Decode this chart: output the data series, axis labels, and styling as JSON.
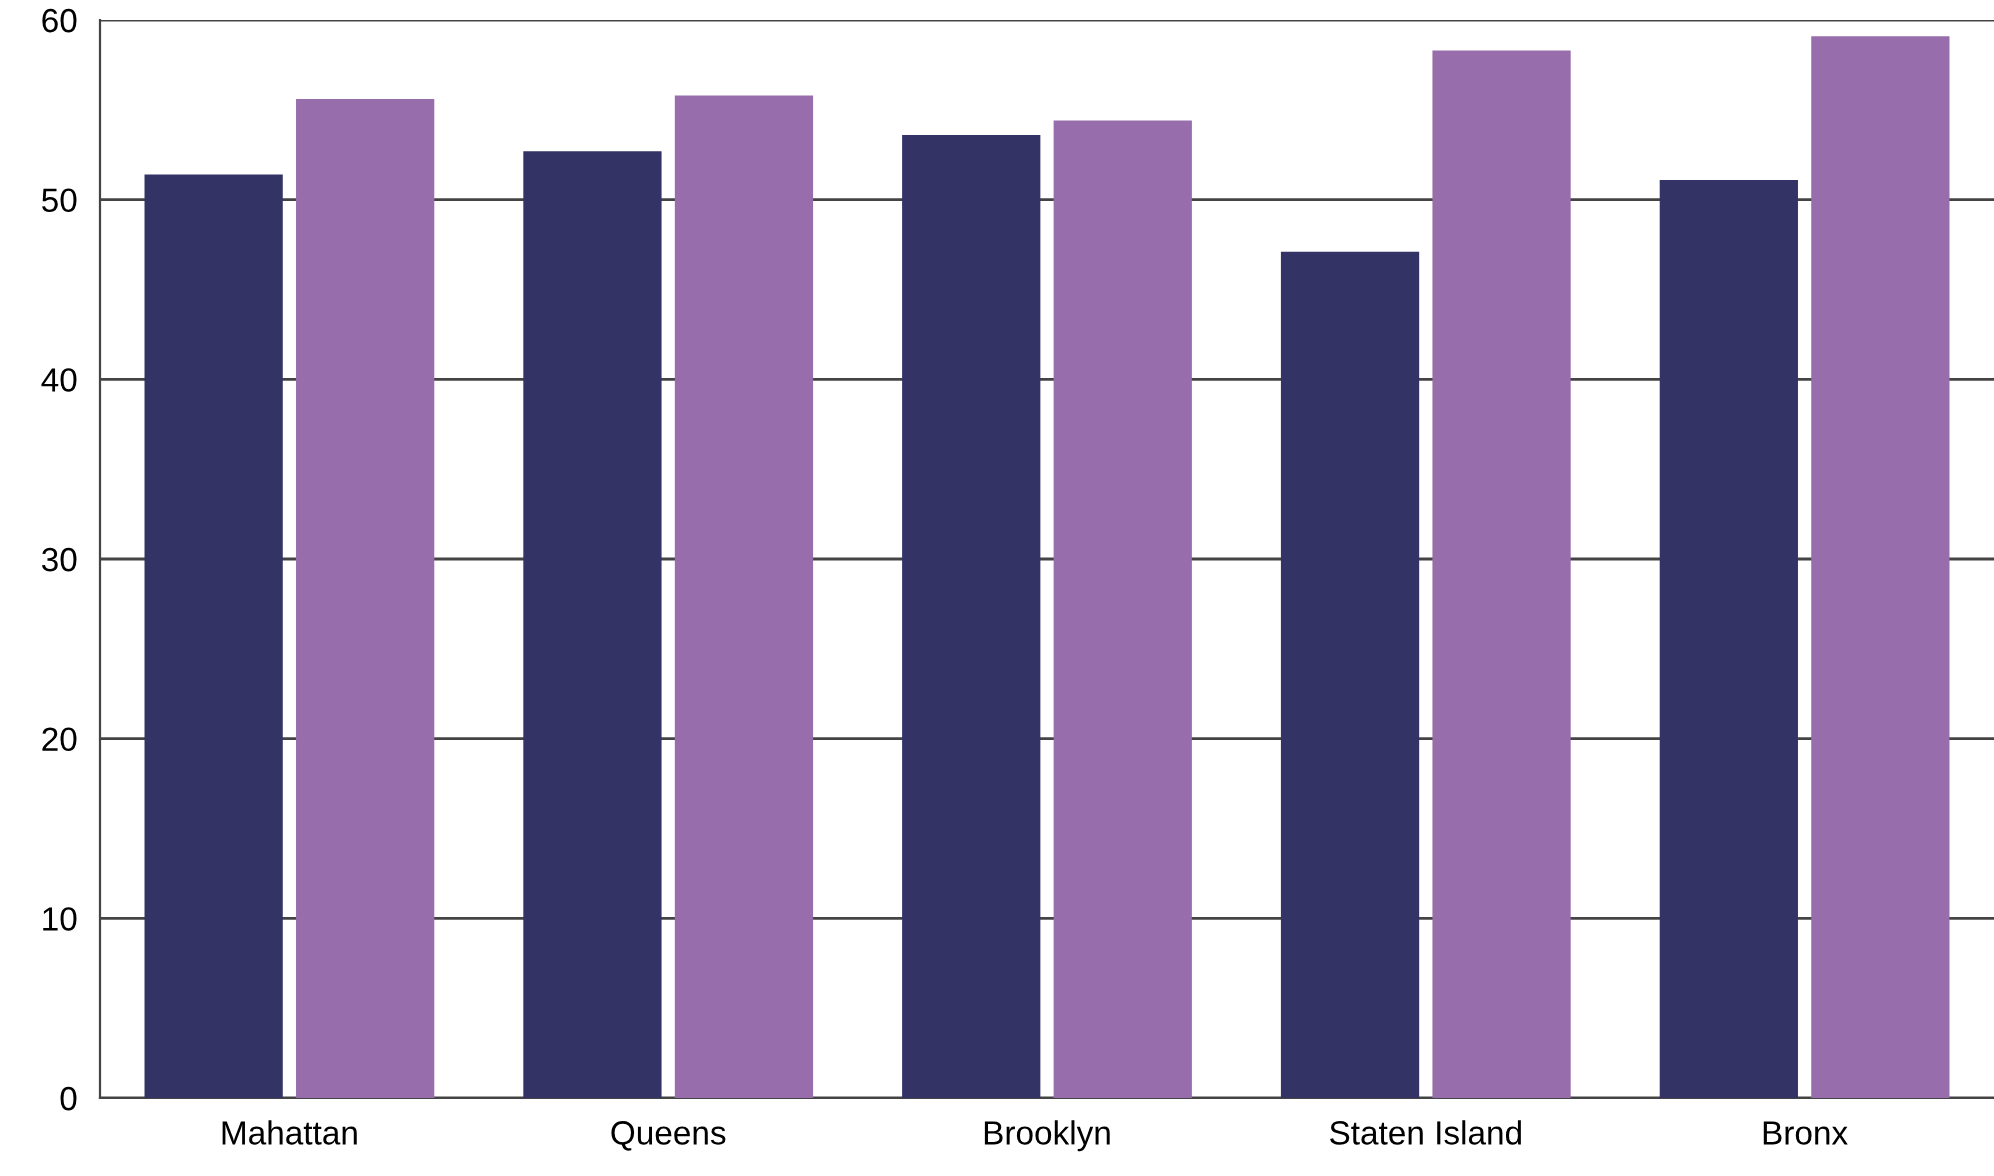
{
  "chart_data": {
    "type": "bar",
    "categories": [
      "Mahattan",
      "Queens",
      "Brooklyn",
      "Staten Island",
      "Bronx"
    ],
    "series": [
      {
        "color": "#333366",
        "values": [
          51.4,
          52.7,
          53.6,
          47.1,
          51.1
        ]
      },
      {
        "color": "#976eab",
        "values": [
          55.6,
          55.8,
          54.4,
          58.3,
          59.1
        ]
      }
    ],
    "ylim": [
      0,
      60
    ],
    "yticks": [
      0,
      10,
      20,
      30,
      40,
      50,
      60
    ],
    "grid": "y"
  }
}
